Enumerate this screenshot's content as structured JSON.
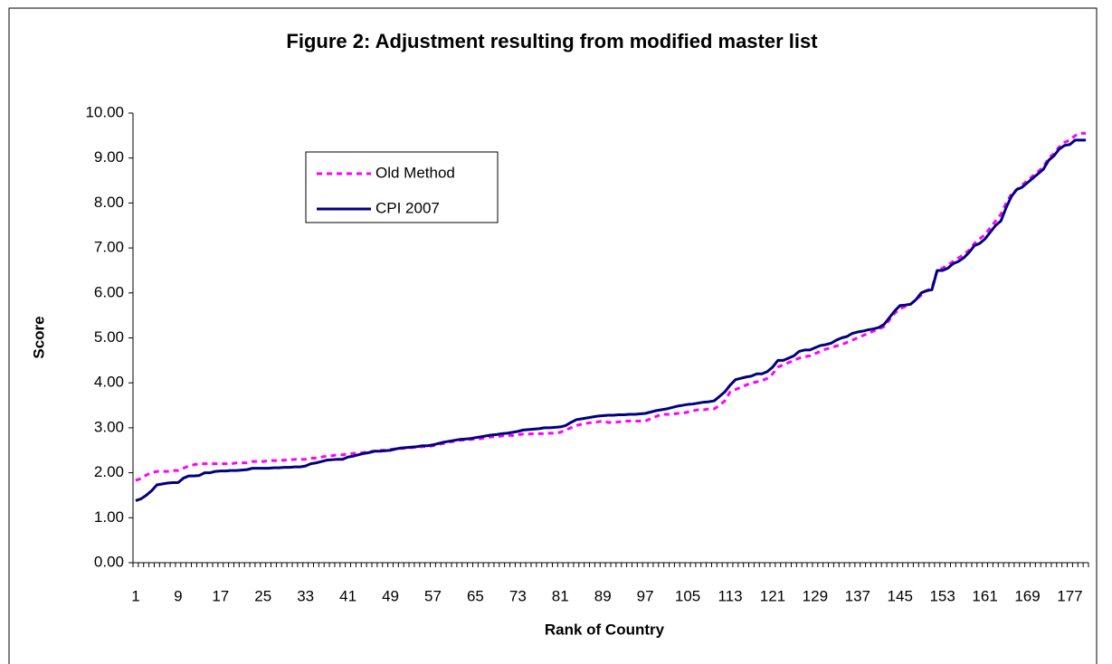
{
  "chart_data": {
    "type": "line",
    "title": "Figure 2: Adjustment resulting from modified master list",
    "x_label": "Rank of Country",
    "y_label": "Score",
    "categories": [
      "1",
      null,
      null,
      null,
      null,
      null,
      null,
      null,
      "9",
      null,
      null,
      null,
      null,
      null,
      null,
      null,
      "17",
      null,
      null,
      null,
      null,
      null,
      null,
      null,
      "25",
      null,
      null,
      null,
      null,
      null,
      null,
      null,
      "33",
      null,
      null,
      null,
      null,
      null,
      null,
      null,
      "41",
      null,
      null,
      null,
      null,
      null,
      null,
      null,
      "49",
      null,
      null,
      null,
      null,
      null,
      null,
      null,
      "57",
      null,
      null,
      null,
      null,
      null,
      null,
      null,
      "65",
      null,
      null,
      null,
      null,
      null,
      null,
      null,
      "73",
      null,
      null,
      null,
      null,
      null,
      null,
      null,
      "81",
      null,
      null,
      null,
      null,
      null,
      null,
      null,
      "89",
      null,
      null,
      null,
      null,
      null,
      null,
      null,
      "97",
      null,
      null,
      null,
      null,
      null,
      null,
      null,
      "105",
      null,
      null,
      null,
      null,
      null,
      null,
      null,
      "113",
      null,
      null,
      null,
      null,
      null,
      null,
      null,
      "121",
      null,
      null,
      null,
      null,
      null,
      null,
      null,
      "129",
      null,
      null,
      null,
      null,
      null,
      null,
      null,
      "137",
      null,
      null,
      null,
      null,
      null,
      null,
      null,
      "145",
      null,
      null,
      null,
      null,
      null,
      null,
      null,
      "153",
      null,
      null,
      null,
      null,
      null,
      null,
      null,
      "161",
      null,
      null,
      null,
      null,
      null,
      null,
      null,
      "169",
      null,
      null,
      null,
      null,
      null,
      null,
      null,
      "177",
      null,
      null,
      null
    ],
    "series": [
      {
        "name": "Old Method",
        "color": "#ff00ff",
        "dashed": true,
        "values": [
          1.83,
          1.87,
          1.95,
          2.0,
          2.03,
          2.03,
          2.03,
          2.05,
          2.05,
          2.1,
          2.15,
          2.18,
          2.2,
          2.2,
          2.2,
          2.2,
          2.2,
          2.2,
          2.2,
          2.22,
          2.22,
          2.22,
          2.25,
          2.25,
          2.25,
          2.27,
          2.27,
          2.27,
          2.28,
          2.28,
          2.3,
          2.3,
          2.3,
          2.32,
          2.33,
          2.35,
          2.37,
          2.38,
          2.4,
          2.4,
          2.42,
          2.43,
          2.44,
          2.45,
          2.47,
          2.48,
          2.5,
          2.5,
          2.52,
          2.53,
          2.54,
          2.55,
          2.56,
          2.57,
          2.58,
          2.58,
          2.6,
          2.63,
          2.65,
          2.68,
          2.7,
          2.72,
          2.73,
          2.74,
          2.75,
          2.76,
          2.78,
          2.8,
          2.8,
          2.82,
          2.83,
          2.83,
          2.85,
          2.86,
          2.86,
          2.87,
          2.87,
          2.87,
          2.88,
          2.88,
          2.9,
          2.95,
          3.0,
          3.05,
          3.08,
          3.1,
          3.12,
          3.13,
          3.15,
          3.12,
          3.12,
          3.13,
          3.15,
          3.15,
          3.15,
          3.15,
          3.15,
          3.2,
          3.25,
          3.3,
          3.3,
          3.3,
          3.32,
          3.32,
          3.35,
          3.38,
          3.4,
          3.4,
          3.42,
          3.42,
          3.5,
          3.6,
          3.8,
          3.85,
          3.9,
          3.95,
          4.0,
          4.02,
          4.05,
          4.1,
          4.2,
          4.35,
          4.4,
          4.45,
          4.5,
          4.55,
          4.58,
          4.6,
          4.65,
          4.7,
          4.75,
          4.78,
          4.82,
          4.85,
          4.9,
          4.95,
          5.0,
          5.05,
          5.1,
          5.15,
          5.2,
          5.25,
          5.4,
          5.55,
          5.65,
          5.7,
          5.75,
          5.85,
          5.95,
          6.05,
          6.1,
          6.5,
          6.55,
          6.62,
          6.7,
          6.78,
          6.85,
          6.95,
          7.1,
          7.2,
          7.3,
          7.45,
          7.6,
          7.75,
          8.0,
          8.2,
          8.3,
          8.4,
          8.5,
          8.6,
          8.7,
          8.8,
          9.0,
          9.1,
          9.25,
          9.35,
          9.4,
          9.5,
          9.55,
          9.55
        ]
      },
      {
        "name": "CPI 2007",
        "color": "#000080",
        "dashed": false,
        "values": [
          1.38,
          1.42,
          1.5,
          1.6,
          1.73,
          1.75,
          1.77,
          1.78,
          1.78,
          1.88,
          1.93,
          1.93,
          1.94,
          2.0,
          2.0,
          2.03,
          2.04,
          2.04,
          2.05,
          2.05,
          2.06,
          2.07,
          2.1,
          2.1,
          2.1,
          2.1,
          2.11,
          2.11,
          2.12,
          2.12,
          2.13,
          2.13,
          2.15,
          2.2,
          2.22,
          2.25,
          2.28,
          2.29,
          2.3,
          2.3,
          2.35,
          2.37,
          2.4,
          2.43,
          2.45,
          2.48,
          2.48,
          2.49,
          2.5,
          2.53,
          2.55,
          2.56,
          2.57,
          2.58,
          2.6,
          2.6,
          2.62,
          2.65,
          2.68,
          2.7,
          2.72,
          2.74,
          2.75,
          2.76,
          2.78,
          2.8,
          2.82,
          2.84,
          2.85,
          2.87,
          2.88,
          2.9,
          2.92,
          2.95,
          2.96,
          2.97,
          2.98,
          3.0,
          3.0,
          3.01,
          3.02,
          3.05,
          3.12,
          3.18,
          3.2,
          3.22,
          3.24,
          3.26,
          3.27,
          3.28,
          3.28,
          3.29,
          3.29,
          3.3,
          3.3,
          3.31,
          3.32,
          3.35,
          3.38,
          3.4,
          3.42,
          3.45,
          3.48,
          3.5,
          3.52,
          3.53,
          3.55,
          3.57,
          3.58,
          3.6,
          3.7,
          3.8,
          3.95,
          4.07,
          4.1,
          4.13,
          4.15,
          4.2,
          4.2,
          4.25,
          4.35,
          4.5,
          4.5,
          4.55,
          4.6,
          4.7,
          4.73,
          4.73,
          4.78,
          4.83,
          4.85,
          4.88,
          4.95,
          5.0,
          5.03,
          5.1,
          5.13,
          5.15,
          5.18,
          5.2,
          5.23,
          5.3,
          5.45,
          5.6,
          5.72,
          5.73,
          5.75,
          5.85,
          6.0,
          6.05,
          6.07,
          6.5,
          6.5,
          6.55,
          6.65,
          6.7,
          6.78,
          6.9,
          7.05,
          7.1,
          7.2,
          7.35,
          7.5,
          7.6,
          7.9,
          8.15,
          8.3,
          8.35,
          8.45,
          8.55,
          8.65,
          8.75,
          8.95,
          9.05,
          9.2,
          9.28,
          9.3,
          9.4,
          9.4,
          9.4
        ]
      }
    ],
    "ylim": [
      0,
      10
    ],
    "yticks": [
      {
        "value": 0,
        "label": "0.00"
      },
      {
        "value": 1,
        "label": "1.00"
      },
      {
        "value": 2,
        "label": "2.00"
      },
      {
        "value": 3,
        "label": "3.00"
      },
      {
        "value": 4,
        "label": "4.00"
      },
      {
        "value": 5,
        "label": "5.00"
      },
      {
        "value": 6,
        "label": "6.00"
      },
      {
        "value": 7,
        "label": "7.00"
      },
      {
        "value": 8,
        "label": "8.00"
      },
      {
        "value": 9,
        "label": "9.00"
      },
      {
        "value": 10,
        "label": "10.00"
      }
    ],
    "grid": false,
    "legend": "upper left"
  }
}
